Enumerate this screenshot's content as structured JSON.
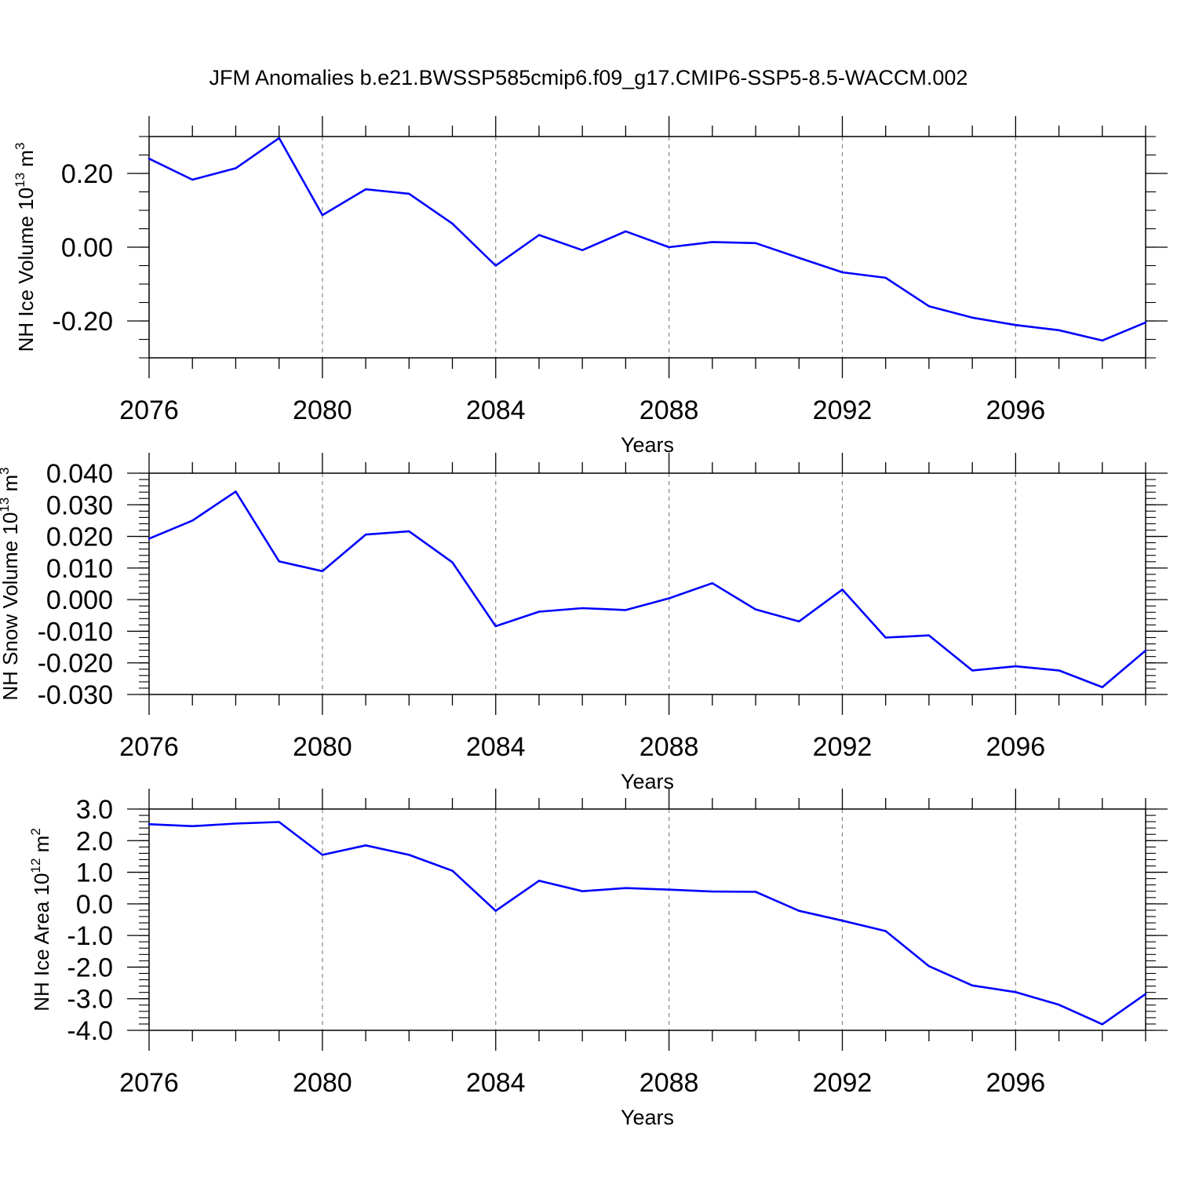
{
  "title": "JFM Anomalies b.e21.BWSSP585cmip6.f09_g17.CMIP6-SSP5-8.5-WACCM.002",
  "colors": {
    "line": "#0000ff",
    "axis": "#000000",
    "grid": "#888888"
  },
  "chart_data": [
    {
      "type": "line",
      "name": "ice-volume",
      "ylabel": "NH Ice Volume 10",
      "ylabel_exp": "13",
      "ylabel_unit": " m",
      "ylabel_unit_exp": "3",
      "xlabel": "Years",
      "xlim": [
        2076,
        2099
      ],
      "ylim": [
        -0.3,
        0.3
      ],
      "x_ticks": [
        2076,
        2080,
        2084,
        2088,
        2092,
        2096
      ],
      "x_tick_labels": [
        "2076",
        "2080",
        "2084",
        "2088",
        "2092",
        "2096"
      ],
      "y_ticks": [
        -0.2,
        0.0,
        0.2
      ],
      "y_tick_labels": [
        "-0.20",
        "0.00",
        "0.20"
      ],
      "y_minor_step": 0.05,
      "x": [
        2076,
        2077,
        2078,
        2079,
        2080,
        2081,
        2082,
        2083,
        2084,
        2085,
        2086,
        2087,
        2088,
        2089,
        2090,
        2091,
        2092,
        2093,
        2094,
        2095,
        2096,
        2097,
        2098,
        2099
      ],
      "values": [
        0.24,
        0.183,
        0.214,
        0.296,
        0.087,
        0.157,
        0.145,
        0.064,
        -0.05,
        0.033,
        -0.008,
        0.043,
        0.0,
        0.014,
        0.011,
        -0.029,
        -0.068,
        -0.083,
        -0.16,
        -0.191,
        -0.211,
        -0.225,
        -0.253,
        -0.204
      ]
    },
    {
      "type": "line",
      "name": "snow-volume",
      "ylabel": "NH Snow Volume 10",
      "ylabel_exp": "13",
      "ylabel_unit": " m",
      "ylabel_unit_exp": "3",
      "xlabel": "Years",
      "xlim": [
        2076,
        2099
      ],
      "ylim": [
        -0.03,
        0.04
      ],
      "x_ticks": [
        2076,
        2080,
        2084,
        2088,
        2092,
        2096
      ],
      "x_tick_labels": [
        "2076",
        "2080",
        "2084",
        "2088",
        "2092",
        "2096"
      ],
      "y_ticks": [
        -0.03,
        -0.02,
        -0.01,
        0.0,
        0.01,
        0.02,
        0.03,
        0.04
      ],
      "y_tick_labels": [
        "-0.030",
        "-0.020",
        "-0.010",
        "0.000",
        "0.010",
        "0.020",
        "0.030",
        "0.040"
      ],
      "y_minor_step": 0.002,
      "x": [
        2076,
        2077,
        2078,
        2079,
        2080,
        2081,
        2082,
        2083,
        2084,
        2085,
        2086,
        2087,
        2088,
        2089,
        2090,
        2091,
        2092,
        2093,
        2094,
        2095,
        2096,
        2097,
        2098,
        2099
      ],
      "values": [
        0.0193,
        0.025,
        0.0342,
        0.0121,
        0.009,
        0.0206,
        0.0216,
        0.0118,
        -0.0084,
        -0.0038,
        -0.0027,
        -0.0033,
        0.0004,
        0.0052,
        -0.0031,
        -0.0069,
        0.0032,
        -0.012,
        -0.0113,
        -0.0224,
        -0.0211,
        -0.0224,
        -0.0277,
        -0.0161
      ]
    },
    {
      "type": "line",
      "name": "ice-area",
      "ylabel": "NH Ice Area 10",
      "ylabel_exp": "12",
      "ylabel_unit": " m",
      "ylabel_unit_exp": "2",
      "xlabel": "Years",
      "xlim": [
        2076,
        2099
      ],
      "ylim": [
        -4.0,
        3.0
      ],
      "x_ticks": [
        2076,
        2080,
        2084,
        2088,
        2092,
        2096
      ],
      "x_tick_labels": [
        "2076",
        "2080",
        "2084",
        "2088",
        "2092",
        "2096"
      ],
      "y_ticks": [
        -4,
        -3,
        -2,
        -1,
        0,
        1,
        2,
        3
      ],
      "y_tick_labels": [
        "-4.0",
        "-3.0",
        "-2.0",
        "-1.0",
        "0.0",
        "1.0",
        "2.0",
        "3.0"
      ],
      "y_minor_step": 0.2,
      "x": [
        2076,
        2077,
        2078,
        2079,
        2080,
        2081,
        2082,
        2083,
        2084,
        2085,
        2086,
        2087,
        2088,
        2089,
        2090,
        2091,
        2092,
        2093,
        2094,
        2095,
        2096,
        2097,
        2098,
        2099
      ],
      "values": [
        2.52,
        2.46,
        2.54,
        2.59,
        1.55,
        1.85,
        1.55,
        1.05,
        -0.22,
        0.73,
        0.4,
        0.5,
        0.45,
        0.39,
        0.38,
        -0.22,
        -0.53,
        -0.86,
        -1.97,
        -2.58,
        -2.79,
        -3.19,
        -3.81,
        -2.85
      ]
    }
  ]
}
